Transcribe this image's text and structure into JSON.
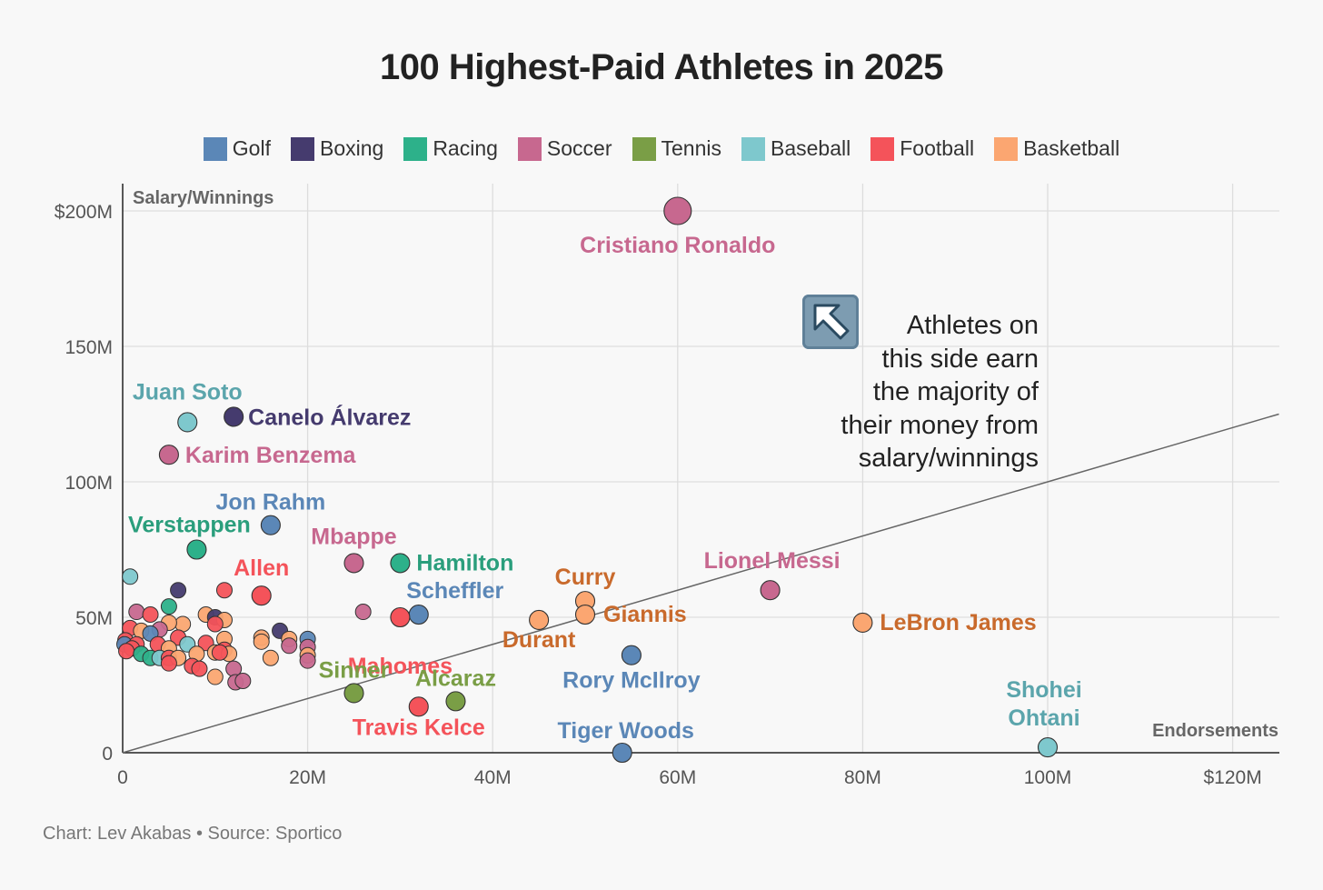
{
  "title": "100 Highest-Paid Athletes in 2025",
  "legend": [
    {
      "label": "Golf",
      "color": "#5b87b7"
    },
    {
      "label": "Boxing",
      "color": "#453b6e"
    },
    {
      "label": "Racing",
      "color": "#2db18a"
    },
    {
      "label": "Soccer",
      "color": "#c7688f"
    },
    {
      "label": "Tennis",
      "color": "#7a9e46"
    },
    {
      "label": "Baseball",
      "color": "#7ec8cd"
    },
    {
      "label": "Football",
      "color": "#f4535a"
    },
    {
      "label": "Basketball",
      "color": "#fba671"
    }
  ],
  "annotation": {
    "icon": "up-left-arrow-icon",
    "lines": [
      "Athletes on",
      "this side earn",
      "the majority of",
      "their money from",
      "salary/winnings"
    ]
  },
  "credit": "Chart: Lev Akabas • Source: Sportico",
  "chart_data": {
    "type": "scatter",
    "title": "100 Highest-Paid Athletes in 2025",
    "xlabel": "Endorsements",
    "ylabel": "Salary/Winnings",
    "xlim": [
      0,
      125
    ],
    "ylim": [
      0,
      200
    ],
    "x_ticks": [
      0,
      20,
      40,
      60,
      80,
      100,
      120
    ],
    "x_tick_labels": [
      "0",
      "20M",
      "40M",
      "60M",
      "80M",
      "100M",
      "$120M"
    ],
    "y_ticks": [
      0,
      50,
      100,
      150,
      200
    ],
    "y_tick_labels": [
      "0",
      "50M",
      "100M",
      "150M",
      "$200M"
    ],
    "reference_line": {
      "from": [
        0,
        0
      ],
      "to": [
        125,
        125
      ],
      "note": "equal endorsements and salary"
    },
    "category_colors": {
      "Golf": "#5b87b7",
      "Boxing": "#453b6e",
      "Racing": "#2db18a",
      "Soccer": "#c7688f",
      "Tennis": "#7a9e46",
      "Baseball": "#7ec8cd",
      "Football": "#f4535a",
      "Basketball": "#fba671"
    },
    "label_colors": {
      "Golf": "#5b87b7",
      "Boxing": "#453b6e",
      "Racing": "#2a9e7c",
      "Soccer": "#c7688f",
      "Tennis": "#7a9e46",
      "Baseball": "#5ba5ac",
      "Football": "#f4535a",
      "Basketball": "#c96a2c"
    },
    "labeled_points": [
      {
        "name": "Cristiano Ronaldo",
        "sport": "Soccer",
        "x": 60,
        "y": 200,
        "big": true
      },
      {
        "name": "Juan Soto",
        "sport": "Baseball",
        "x": 7,
        "y": 122
      },
      {
        "name": "Canelo Álvarez",
        "sport": "Boxing",
        "x": 12,
        "y": 124
      },
      {
        "name": "Karim Benzema",
        "sport": "Soccer",
        "x": 5,
        "y": 110
      },
      {
        "name": "Jon Rahm",
        "sport": "Golf",
        "x": 16,
        "y": 84
      },
      {
        "name": "Verstappen",
        "sport": "Racing",
        "x": 8,
        "y": 75
      },
      {
        "name": "Mbappe",
        "sport": "Soccer",
        "x": 25,
        "y": 70
      },
      {
        "name": "Hamilton",
        "sport": "Racing",
        "x": 30,
        "y": 70
      },
      {
        "name": "Allen",
        "sport": "Football",
        "x": 15,
        "y": 58
      },
      {
        "name": "Scheffler",
        "sport": "Golf",
        "x": 32,
        "y": 51
      },
      {
        "name": "Curry",
        "sport": "Basketball",
        "x": 50,
        "y": 56
      },
      {
        "name": "Giannis",
        "sport": "Basketball",
        "x": 50,
        "y": 51
      },
      {
        "name": "Durant",
        "sport": "Basketball",
        "x": 45,
        "y": 49
      },
      {
        "name": "Lionel Messi",
        "sport": "Soccer",
        "x": 70,
        "y": 60
      },
      {
        "name": "LeBron James",
        "sport": "Basketball",
        "x": 80,
        "y": 48
      },
      {
        "name": "Mahomes",
        "sport": "Football",
        "x": 30,
        "y": 50
      },
      {
        "name": "Sinner",
        "sport": "Tennis",
        "x": 25,
        "y": 22
      },
      {
        "name": "Alcaraz",
        "sport": "Tennis",
        "x": 36,
        "y": 19
      },
      {
        "name": "Travis Kelce",
        "sport": "Football",
        "x": 32,
        "y": 17
      },
      {
        "name": "Rory McIlroy",
        "sport": "Golf",
        "x": 55,
        "y": 36
      },
      {
        "name": "Tiger Woods",
        "sport": "Golf",
        "x": 54,
        "y": 0
      },
      {
        "name": "Shohei Ohtani",
        "sport": "Baseball",
        "x": 100,
        "y": 2
      }
    ],
    "other_points": [
      {
        "sport": "Baseball",
        "x": 0.8,
        "y": 65
      },
      {
        "sport": "Boxing",
        "x": 6,
        "y": 60
      },
      {
        "sport": "Football",
        "x": 11,
        "y": 60
      },
      {
        "sport": "Racing",
        "x": 5,
        "y": 54
      },
      {
        "sport": "Soccer",
        "x": 1.5,
        "y": 52
      },
      {
        "sport": "Football",
        "x": 3,
        "y": 51
      },
      {
        "sport": "Basketball",
        "x": 9,
        "y": 51
      },
      {
        "sport": "Boxing",
        "x": 10,
        "y": 50
      },
      {
        "sport": "Basketball",
        "x": 11,
        "y": 49
      },
      {
        "sport": "Basketball",
        "x": 6.5,
        "y": 47.5
      },
      {
        "sport": "Football",
        "x": 10,
        "y": 47.5
      },
      {
        "sport": "Basketball",
        "x": 5,
        "y": 48
      },
      {
        "sport": "Football",
        "x": 0.8,
        "y": 46
      },
      {
        "sport": "Soccer",
        "x": 4,
        "y": 45.5
      },
      {
        "sport": "Basketball",
        "x": 2,
        "y": 45
      },
      {
        "sport": "Golf",
        "x": 3,
        "y": 44
      },
      {
        "sport": "Boxing",
        "x": 17,
        "y": 45
      },
      {
        "sport": "Basketball",
        "x": 15,
        "y": 42.5
      },
      {
        "sport": "Golf",
        "x": 20,
        "y": 42
      },
      {
        "sport": "Basketball",
        "x": 18,
        "y": 42
      },
      {
        "sport": "Football",
        "x": 6,
        "y": 42.5
      },
      {
        "sport": "Basketball",
        "x": 11,
        "y": 42
      },
      {
        "sport": "Football",
        "x": 0.3,
        "y": 41.5
      },
      {
        "sport": "Golf",
        "x": 0.2,
        "y": 40
      },
      {
        "sport": "Baseball",
        "x": 7,
        "y": 40
      },
      {
        "sport": "Football",
        "x": 9,
        "y": 40.5
      },
      {
        "sport": "Football",
        "x": 1.5,
        "y": 40
      },
      {
        "sport": "Football",
        "x": 3.8,
        "y": 40
      },
      {
        "sport": "Soccer",
        "x": 18,
        "y": 39.5
      },
      {
        "sport": "Soccer",
        "x": 20,
        "y": 39
      },
      {
        "sport": "Football",
        "x": 1,
        "y": 38.5
      },
      {
        "sport": "Basketball",
        "x": 15,
        "y": 41
      },
      {
        "sport": "Football",
        "x": 0.4,
        "y": 37.5
      },
      {
        "sport": "Basketball",
        "x": 5,
        "y": 38.5
      },
      {
        "sport": "Football",
        "x": 11,
        "y": 38
      },
      {
        "sport": "Basketball",
        "x": 10,
        "y": 37
      },
      {
        "sport": "Basketball",
        "x": 11.5,
        "y": 36.5
      },
      {
        "sport": "Football",
        "x": 10.5,
        "y": 37
      },
      {
        "sport": "Basketball",
        "x": 8,
        "y": 36.5
      },
      {
        "sport": "Racing",
        "x": 2,
        "y": 36.5
      },
      {
        "sport": "Racing",
        "x": 3,
        "y": 35
      },
      {
        "sport": "Baseball",
        "x": 4,
        "y": 35
      },
      {
        "sport": "Football",
        "x": 5,
        "y": 35
      },
      {
        "sport": "Basketball",
        "x": 6,
        "y": 35
      },
      {
        "sport": "Basketball",
        "x": 20,
        "y": 36
      },
      {
        "sport": "Basketball",
        "x": 16,
        "y": 35
      },
      {
        "sport": "Soccer",
        "x": 20,
        "y": 34
      },
      {
        "sport": "Football",
        "x": 5,
        "y": 33
      },
      {
        "sport": "Football",
        "x": 7.5,
        "y": 32
      },
      {
        "sport": "Football",
        "x": 8.3,
        "y": 31
      },
      {
        "sport": "Soccer",
        "x": 12,
        "y": 31
      },
      {
        "sport": "Basketball",
        "x": 10,
        "y": 28
      },
      {
        "sport": "Soccer",
        "x": 12.2,
        "y": 26
      },
      {
        "sport": "Soccer",
        "x": 13,
        "y": 26.5
      },
      {
        "sport": "Soccer",
        "x": 26,
        "y": 52
      }
    ]
  }
}
